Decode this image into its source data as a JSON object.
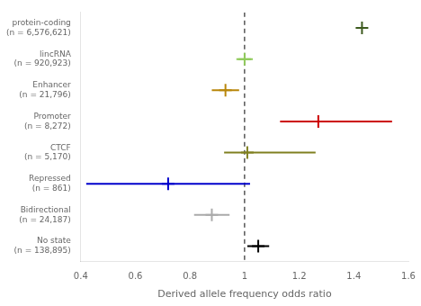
{
  "chart_data": {
    "type": "scatter",
    "categories": [
      "protein-coding\n(n = 6,576,621)",
      "lincRNA\n(n = 920,923)",
      "Enhancer\n(n = 21,796)",
      "Promoter\n(n = 8,272)",
      "CTCF\n(n = 5,170)",
      "Repressed\n(n = 861)",
      "Bidirectional\n(n = 24,187)",
      "No state\n(n = 138,895)"
    ],
    "values": [
      1.43,
      1.0,
      0.93,
      1.27,
      1.01,
      0.72,
      0.88,
      1.05
    ],
    "error_low": [
      0.02,
      0.03,
      0.05,
      0.14,
      0.085,
      0.3,
      0.065,
      0.04
    ],
    "error_high": [
      0.02,
      0.03,
      0.05,
      0.27,
      0.25,
      0.3,
      0.065,
      0.04
    ],
    "colors": [
      "#3d5a1e",
      "#8fca5a",
      "#b8860b",
      "#cc0000",
      "#808020",
      "#0000cc",
      "#aaaaaa",
      "#000000"
    ],
    "marker": "plus",
    "xlabel": "Derived allele frequency odds ratio",
    "xlim": [
      0.4,
      1.6
    ],
    "xticks": [
      0.4,
      0.6,
      0.8,
      1,
      1.2,
      1.4,
      1.6
    ],
    "vline": 1,
    "grid": false
  }
}
